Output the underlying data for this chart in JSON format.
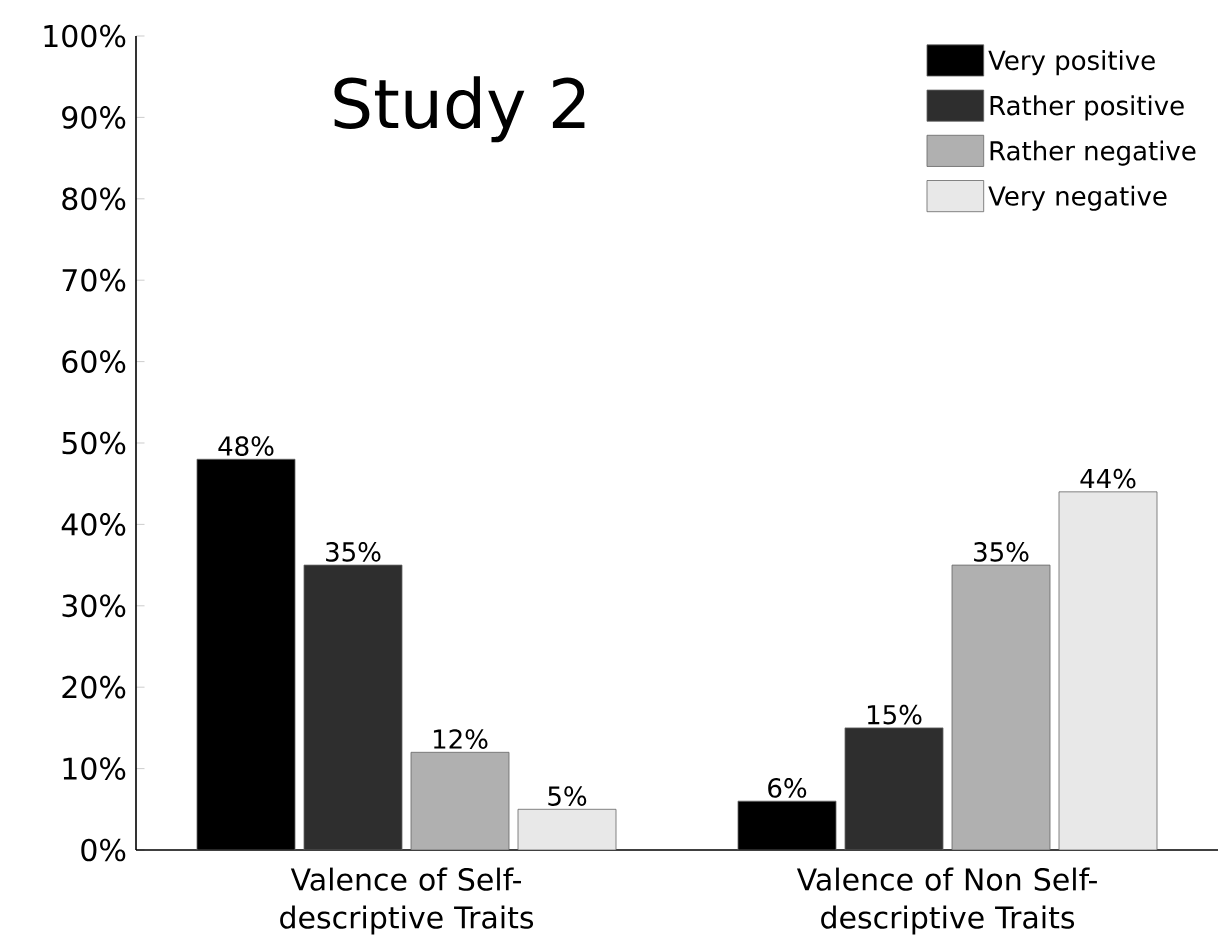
{
  "chart_data": {
    "type": "bar",
    "title": "Study 2",
    "categories": [
      "Valence of Self-descriptive Traits",
      "Valence of Non Self-descriptive Traits"
    ],
    "series": [
      {
        "name": "Very positive",
        "color": "#000000",
        "values": [
          48,
          6
        ],
        "value_labels": [
          "48%",
          "6%"
        ]
      },
      {
        "name": "Rather positive",
        "color": "#2e2e2e",
        "values": [
          35,
          15
        ],
        "value_labels": [
          "35%",
          "15%"
        ]
      },
      {
        "name": "Rather negative",
        "color": "#b0b0b0",
        "values": [
          12,
          35
        ],
        "value_labels": [
          "12%",
          "35%"
        ]
      },
      {
        "name": "Very negative",
        "color": "#e8e8e8",
        "values": [
          5,
          44
        ],
        "value_labels": [
          "5%",
          "44%"
        ]
      }
    ],
    "ylim": [
      0,
      100
    ],
    "yticks": [
      {
        "value": 0,
        "label": "0%"
      },
      {
        "value": 10,
        "label": "10%"
      },
      {
        "value": 20,
        "label": "20%"
      },
      {
        "value": 30,
        "label": "30%"
      },
      {
        "value": 40,
        "label": "40%"
      },
      {
        "value": 50,
        "label": "50%"
      },
      {
        "value": 60,
        "label": "60%"
      },
      {
        "value": 70,
        "label": "70%"
      },
      {
        "value": 80,
        "label": "80%"
      },
      {
        "value": 90,
        "label": "90%"
      },
      {
        "value": 100,
        "label": "100%"
      }
    ],
    "grid": false,
    "legend": "top right"
  }
}
